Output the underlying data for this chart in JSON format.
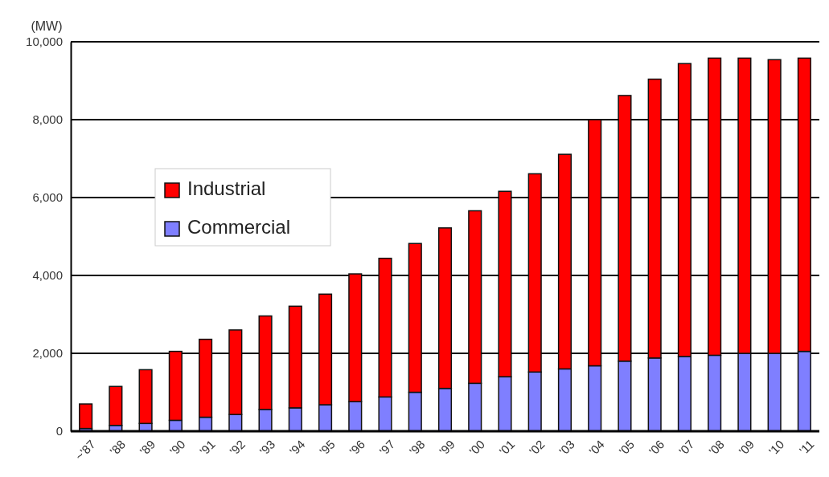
{
  "chart_data": {
    "type": "bar",
    "stacked": true,
    "ylabel": "(MW)",
    "categories": [
      "~'87",
      "'88",
      "'89",
      "'90",
      "'91",
      "'92",
      "'93",
      "'94",
      "'95",
      "'96",
      "'97",
      "'98",
      "'99",
      "'00",
      "'01",
      "'02",
      "'03",
      "'04",
      "'05",
      "'06",
      "'07",
      "'08",
      "'09",
      "'10",
      "'11"
    ],
    "series": [
      {
        "name": "Commercial",
        "color": "#7f7fff",
        "values": [
          70,
          150,
          200,
          280,
          360,
          430,
          560,
          600,
          680,
          760,
          880,
          1000,
          1100,
          1230,
          1400,
          1520,
          1600,
          1680,
          1800,
          1880,
          1920,
          1950,
          2000,
          2000,
          2050
        ]
      },
      {
        "name": "Industrial",
        "color": "#ff0000",
        "values": [
          630,
          1000,
          1380,
          1770,
          2000,
          2170,
          2400,
          2610,
          2840,
          3280,
          3560,
          3820,
          4120,
          4430,
          4760,
          5090,
          5510,
          6320,
          6820,
          7160,
          7520,
          7630,
          7580,
          7540,
          7530
        ]
      }
    ],
    "ylim": [
      0,
      10000
    ],
    "yticks": [
      {
        "value": 0,
        "label": "0"
      },
      {
        "value": 2000,
        "label": "2,000"
      },
      {
        "value": 4000,
        "label": "4,000"
      },
      {
        "value": 6000,
        "label": "6,000"
      },
      {
        "value": 8000,
        "label": "8,000"
      },
      {
        "value": 10000,
        "label": "10,000"
      }
    ],
    "grid": "y",
    "legend": "left"
  }
}
